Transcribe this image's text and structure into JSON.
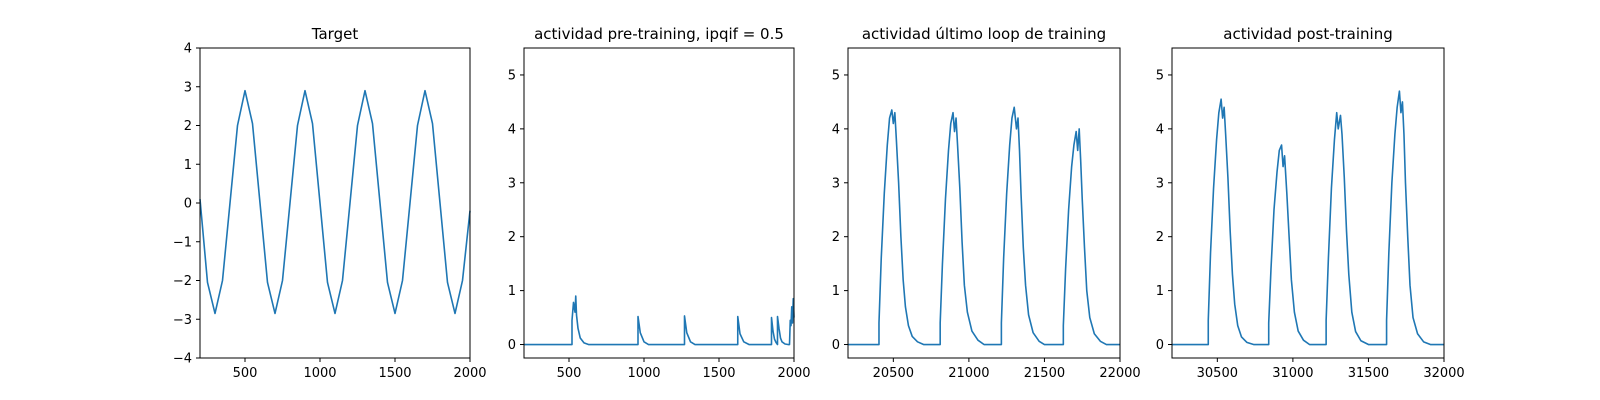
{
  "chart_data": [
    {
      "type": "line",
      "title": "Target",
      "xlabel": "",
      "ylabel": "",
      "xlim": [
        200,
        2000
      ],
      "ylim": [
        -4,
        4
      ],
      "xticks": [
        500,
        1000,
        1500,
        2000
      ],
      "yticks": [
        -4,
        -3,
        -2,
        -1,
        0,
        1,
        2,
        3,
        4
      ],
      "ytick_labels": [
        "−4",
        "−3",
        "−2",
        "−1",
        "0",
        "1",
        "2",
        "3",
        "4"
      ],
      "grid": false,
      "color": "#1f77b4",
      "series": [
        {
          "x": [
            200,
            250,
            300,
            350,
            400,
            450,
            500,
            550,
            600,
            650,
            700,
            750,
            800,
            850,
            900,
            950,
            1000,
            1050,
            1100,
            1150,
            1200,
            1250,
            1300,
            1350,
            1400,
            1450,
            1500,
            1550,
            1600,
            1650,
            1700,
            1750,
            1800,
            1850,
            1900,
            1950,
            2000
          ],
          "y": [
            0.1,
            -2.05,
            -2.85,
            -2.0,
            0.0,
            2.0,
            2.9,
            2.05,
            0.0,
            -2.05,
            -2.85,
            -2.0,
            0.0,
            2.0,
            2.9,
            2.05,
            0.0,
            -2.05,
            -2.85,
            -2.0,
            0.0,
            2.0,
            2.9,
            2.05,
            0.0,
            -2.05,
            -2.85,
            -2.0,
            0.0,
            2.0,
            2.9,
            2.05,
            0.0,
            -2.05,
            -2.85,
            -2.0,
            -0.2
          ]
        }
      ]
    },
    {
      "type": "line",
      "title": "actividad pre-training, ipqif = 0.5",
      "xlabel": "",
      "ylabel": "",
      "xlim": [
        200,
        2000
      ],
      "ylim": [
        -0.25,
        5.5
      ],
      "xticks": [
        500,
        1000,
        1500,
        2000
      ],
      "yticks": [
        0,
        1,
        2,
        3,
        4,
        5
      ],
      "grid": false,
      "color": "#1f77b4",
      "series": [
        {
          "x": [
            200,
            520,
            520,
            530,
            540,
            545,
            550,
            560,
            575,
            600,
            630,
            960,
            960,
            975,
            1000,
            1030,
            1270,
            1270,
            1285,
            1310,
            1340,
            1625,
            1625,
            1640,
            1665,
            1700,
            1850,
            1850,
            1860,
            1870,
            1880,
            1890,
            1890,
            1900,
            1910,
            1920,
            1940,
            1960,
            1970,
            1975,
            1980,
            1985,
            1990,
            1995,
            2000
          ],
          "y": [
            0.0,
            0.0,
            0.45,
            0.78,
            0.6,
            0.9,
            0.55,
            0.3,
            0.12,
            0.03,
            0.0,
            0.0,
            0.52,
            0.22,
            0.05,
            0.0,
            0.0,
            0.53,
            0.22,
            0.05,
            0.0,
            0.0,
            0.52,
            0.2,
            0.05,
            0.0,
            0.0,
            0.5,
            0.25,
            0.1,
            0.04,
            0.0,
            0.52,
            0.3,
            0.12,
            0.05,
            0.01,
            0.0,
            0.0,
            0.45,
            0.35,
            0.7,
            0.4,
            0.85,
            0.5
          ]
        }
      ]
    },
    {
      "type": "line",
      "title": "actividad último loop de training",
      "xlabel": "",
      "ylabel": "",
      "xlim": [
        20200,
        22000
      ],
      "ylim": [
        -0.25,
        5.5
      ],
      "xticks": [
        20500,
        21000,
        21500,
        22000
      ],
      "yticks": [
        0,
        1,
        2,
        3,
        4,
        5
      ],
      "grid": false,
      "color": "#1f77b4",
      "series": [
        {
          "x": [
            20200,
            20405,
            20405,
            20420,
            20440,
            20460,
            20475,
            20490,
            20500,
            20510,
            20520,
            20535,
            20550,
            20565,
            20580,
            20600,
            20625,
            20660,
            20700,
            20810,
            20810,
            20825,
            20845,
            20865,
            20880,
            20895,
            20905,
            20915,
            20925,
            20940,
            20955,
            20970,
            20990,
            21020,
            21060,
            21100,
            21215,
            21215,
            21230,
            21250,
            21270,
            21285,
            21300,
            21315,
            21325,
            21335,
            21345,
            21360,
            21375,
            21395,
            21425,
            21465,
            21500,
            21625,
            21625,
            21640,
            21660,
            21680,
            21695,
            21710,
            21720,
            21730,
            21740,
            21750,
            21765,
            21780,
            21800,
            21830,
            21870,
            21910,
            22000
          ],
          "y": [
            0.0,
            0.0,
            0.4,
            1.6,
            2.8,
            3.7,
            4.2,
            4.35,
            4.1,
            4.3,
            3.8,
            3.0,
            2.0,
            1.2,
            0.7,
            0.35,
            0.15,
            0.05,
            0.0,
            0.0,
            0.4,
            1.5,
            2.7,
            3.6,
            4.1,
            4.3,
            3.95,
            4.2,
            3.7,
            2.9,
            1.9,
            1.1,
            0.6,
            0.25,
            0.08,
            0.0,
            0.0,
            0.4,
            1.6,
            2.8,
            3.7,
            4.2,
            4.4,
            4.0,
            4.2,
            3.6,
            2.8,
            1.8,
            1.1,
            0.55,
            0.22,
            0.06,
            0.0,
            0.0,
            0.35,
            1.4,
            2.5,
            3.3,
            3.7,
            3.95,
            3.6,
            4.0,
            3.4,
            2.7,
            1.8,
            1.0,
            0.5,
            0.2,
            0.06,
            0.0,
            0.0
          ]
        }
      ]
    },
    {
      "type": "line",
      "title": "actividad post-training",
      "xlabel": "",
      "ylabel": "",
      "xlim": [
        30200,
        32000
      ],
      "ylim": [
        -0.25,
        5.5
      ],
      "xticks": [
        30500,
        31000,
        31500,
        32000
      ],
      "yticks": [
        0,
        1,
        2,
        3,
        4,
        5
      ],
      "grid": false,
      "color": "#1f77b4",
      "series": [
        {
          "x": [
            30200,
            30440,
            30440,
            30455,
            30475,
            30495,
            30510,
            30525,
            30535,
            30545,
            30555,
            30570,
            30585,
            30600,
            30615,
            30635,
            30660,
            30695,
            30740,
            30840,
            30840,
            30855,
            30875,
            30895,
            30910,
            30925,
            30935,
            30945,
            30960,
            30975,
            30990,
            31010,
            31035,
            31070,
            31110,
            31220,
            31220,
            31235,
            31255,
            31275,
            31290,
            31300,
            31315,
            31325,
            31340,
            31355,
            31370,
            31390,
            31415,
            31450,
            31500,
            31620,
            31620,
            31635,
            31655,
            31675,
            31690,
            31705,
            31715,
            31725,
            31735,
            31745,
            31760,
            31775,
            31795,
            31825,
            31865,
            31910,
            32000
          ],
          "y": [
            0.0,
            0.0,
            0.45,
            1.7,
            2.9,
            3.8,
            4.3,
            4.55,
            4.2,
            4.4,
            3.9,
            3.1,
            2.1,
            1.3,
            0.75,
            0.35,
            0.14,
            0.04,
            0.0,
            0.0,
            0.4,
            1.4,
            2.5,
            3.2,
            3.6,
            3.7,
            3.3,
            3.5,
            2.8,
            2.0,
            1.2,
            0.6,
            0.25,
            0.08,
            0.0,
            0.0,
            0.45,
            1.6,
            2.9,
            3.8,
            4.3,
            4.0,
            4.25,
            3.9,
            3.1,
            2.1,
            1.3,
            0.6,
            0.24,
            0.07,
            0.0,
            0.0,
            0.45,
            1.7,
            3.0,
            3.9,
            4.4,
            4.7,
            4.3,
            4.5,
            3.9,
            3.0,
            2.0,
            1.1,
            0.5,
            0.2,
            0.05,
            0.0,
            0.0
          ]
        }
      ]
    }
  ]
}
